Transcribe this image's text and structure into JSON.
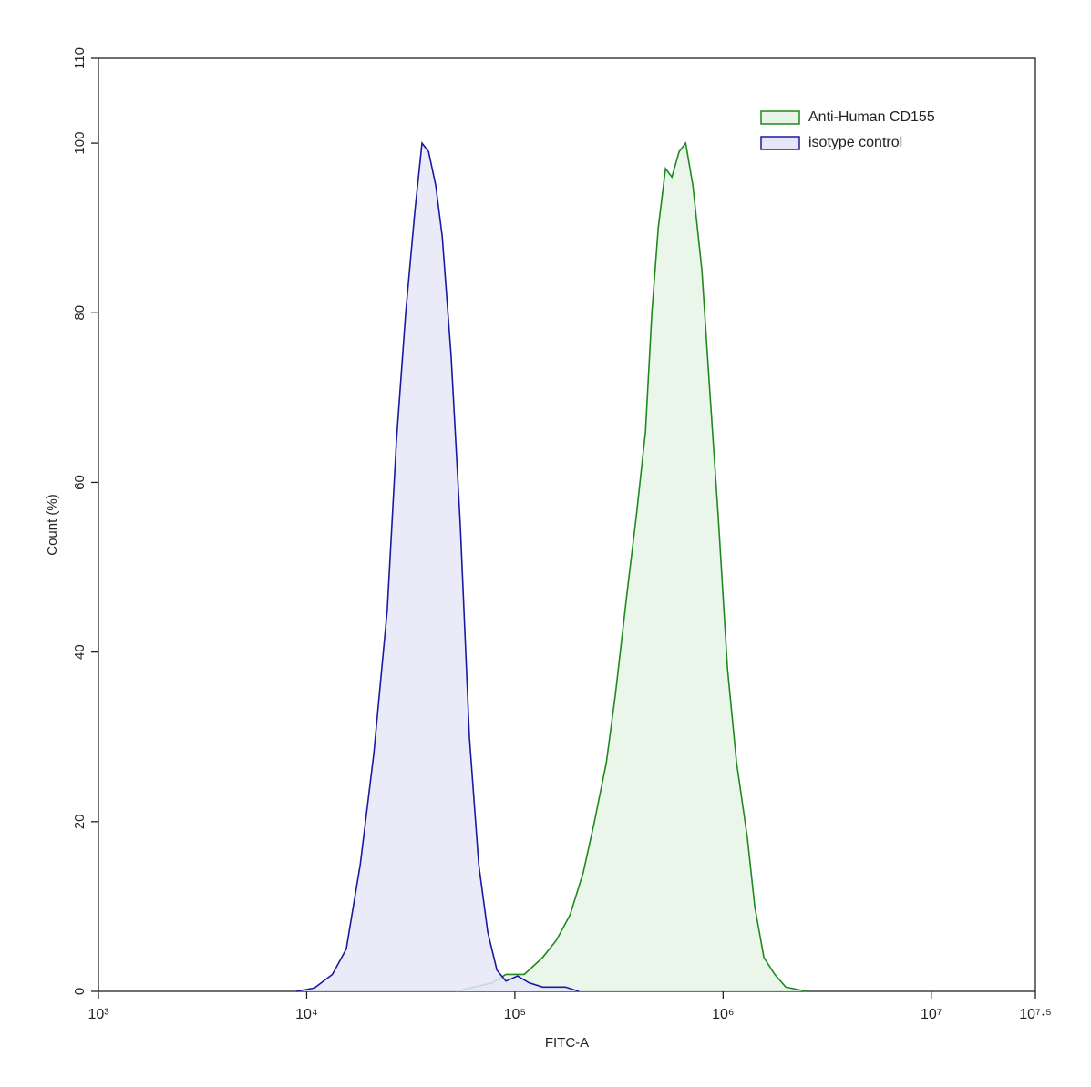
{
  "chart_data": {
    "type": "histogram-line",
    "xlabel": "FITC-A",
    "ylabel": "Count (%)",
    "xscale": "log",
    "xlim": [
      1000,
      31622777
    ],
    "xticks": [
      {
        "value": 1000,
        "label": "10³"
      },
      {
        "value": 10000,
        "label": "10⁴"
      },
      {
        "value": 100000,
        "label": "10⁵"
      },
      {
        "value": 1000000,
        "label": "10⁶"
      },
      {
        "value": 10000000,
        "label": "10⁷"
      },
      {
        "value": 31622777,
        "label": "10⁷·⁵"
      }
    ],
    "ylim": [
      0,
      110
    ],
    "yticks": [
      0,
      20,
      40,
      60,
      80,
      100,
      110
    ],
    "legend": "upper right",
    "series": [
      {
        "name": "Anti-Human CD155",
        "color": "#1e8a1e",
        "fill": "#e8f4e8",
        "x": [
          52000,
          63700,
          77900,
          90600,
          111000,
          136000,
          158000,
          184000,
          213000,
          241000,
          275000,
          304000,
          346000,
          383000,
          424000,
          455000,
          488000,
          529000,
          568000,
          615000,
          661000,
          716000,
          791000,
          857000,
          948000,
          1050000,
          1160000,
          1310000,
          1420000,
          1570000,
          1770000,
          2000000,
          2520000
        ],
        "values": [
          0,
          0.5,
          1,
          2,
          2,
          4,
          6,
          9,
          14,
          20,
          27,
          35,
          47,
          56,
          66,
          80,
          90,
          97,
          96,
          99,
          100,
          95,
          85,
          72,
          56,
          38,
          27,
          18,
          10,
          4,
          2,
          0.5,
          0
        ]
      },
      {
        "name": "isotype control",
        "color": "#1a1aa0",
        "fill": "#e6e6f8",
        "x": [
          8900,
          10900,
          13300,
          15500,
          18100,
          21000,
          24400,
          27000,
          29900,
          33100,
          35800,
          38500,
          41700,
          44800,
          49400,
          54700,
          60500,
          67000,
          74100,
          82000,
          90600,
          103000,
          117000,
          136000,
          175000,
          203000
        ],
        "values": [
          0,
          0.4,
          2,
          5,
          15,
          28,
          45,
          65,
          80,
          92,
          100,
          99,
          95,
          89,
          75,
          55,
          30,
          15,
          7,
          2.5,
          1.2,
          1.8,
          1,
          0.5,
          0.5,
          0
        ]
      }
    ]
  }
}
